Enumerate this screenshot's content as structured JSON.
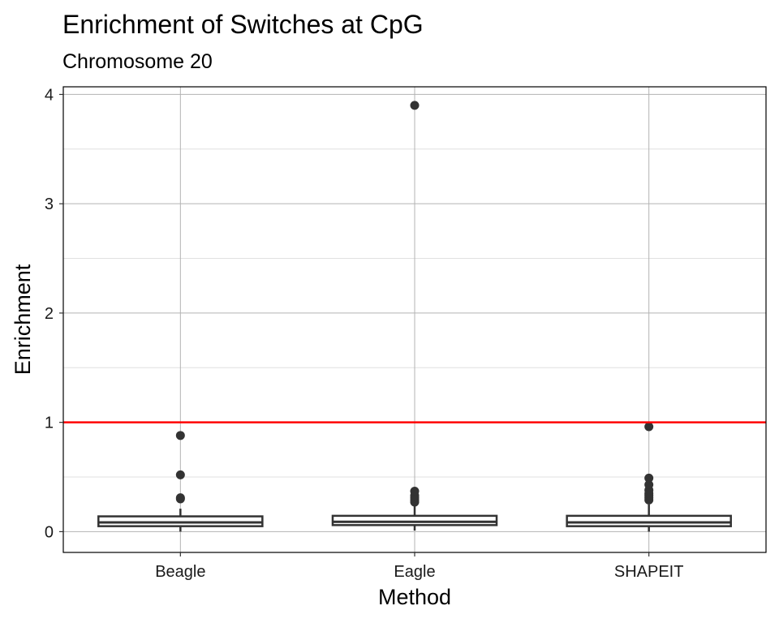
{
  "chart_data": {
    "type": "box",
    "title": "Enrichment of Switches at CpG",
    "subtitle": "Chromosome 20",
    "xlabel": "Method",
    "ylabel": "Enrichment",
    "categories": [
      "Beagle",
      "Eagle",
      "SHAPEIT"
    ],
    "ylim": [
      -0.19,
      4.07
    ],
    "yticks": [
      0,
      1,
      2,
      3,
      4
    ],
    "grid": true,
    "reference_line": {
      "y": 1,
      "color": "#ff0000"
    },
    "boxes": [
      {
        "category": "Beagle",
        "q1": 0.05,
        "median": 0.085,
        "q3": 0.14,
        "whisker_low": 0.0,
        "whisker_high": 0.21,
        "outliers": [
          0.3,
          0.31,
          0.52,
          0.88
        ]
      },
      {
        "category": "Eagle",
        "q1": 0.06,
        "median": 0.09,
        "q3": 0.145,
        "whisker_low": 0.01,
        "whisker_high": 0.24,
        "outliers": [
          0.27,
          0.29,
          0.31,
          0.33,
          0.37,
          3.9
        ]
      },
      {
        "category": "SHAPEIT",
        "q1": 0.05,
        "median": 0.085,
        "q3": 0.145,
        "whisker_low": 0.0,
        "whisker_high": 0.25,
        "outliers": [
          0.29,
          0.31,
          0.33,
          0.35,
          0.38,
          0.43,
          0.49,
          0.96
        ]
      }
    ],
    "colors": {
      "box_stroke": "#333333",
      "outlier": "#333333",
      "grid_major": "#b3b3b3",
      "grid_minor": "#e0e0e0",
      "panel_border": "#000000"
    }
  }
}
